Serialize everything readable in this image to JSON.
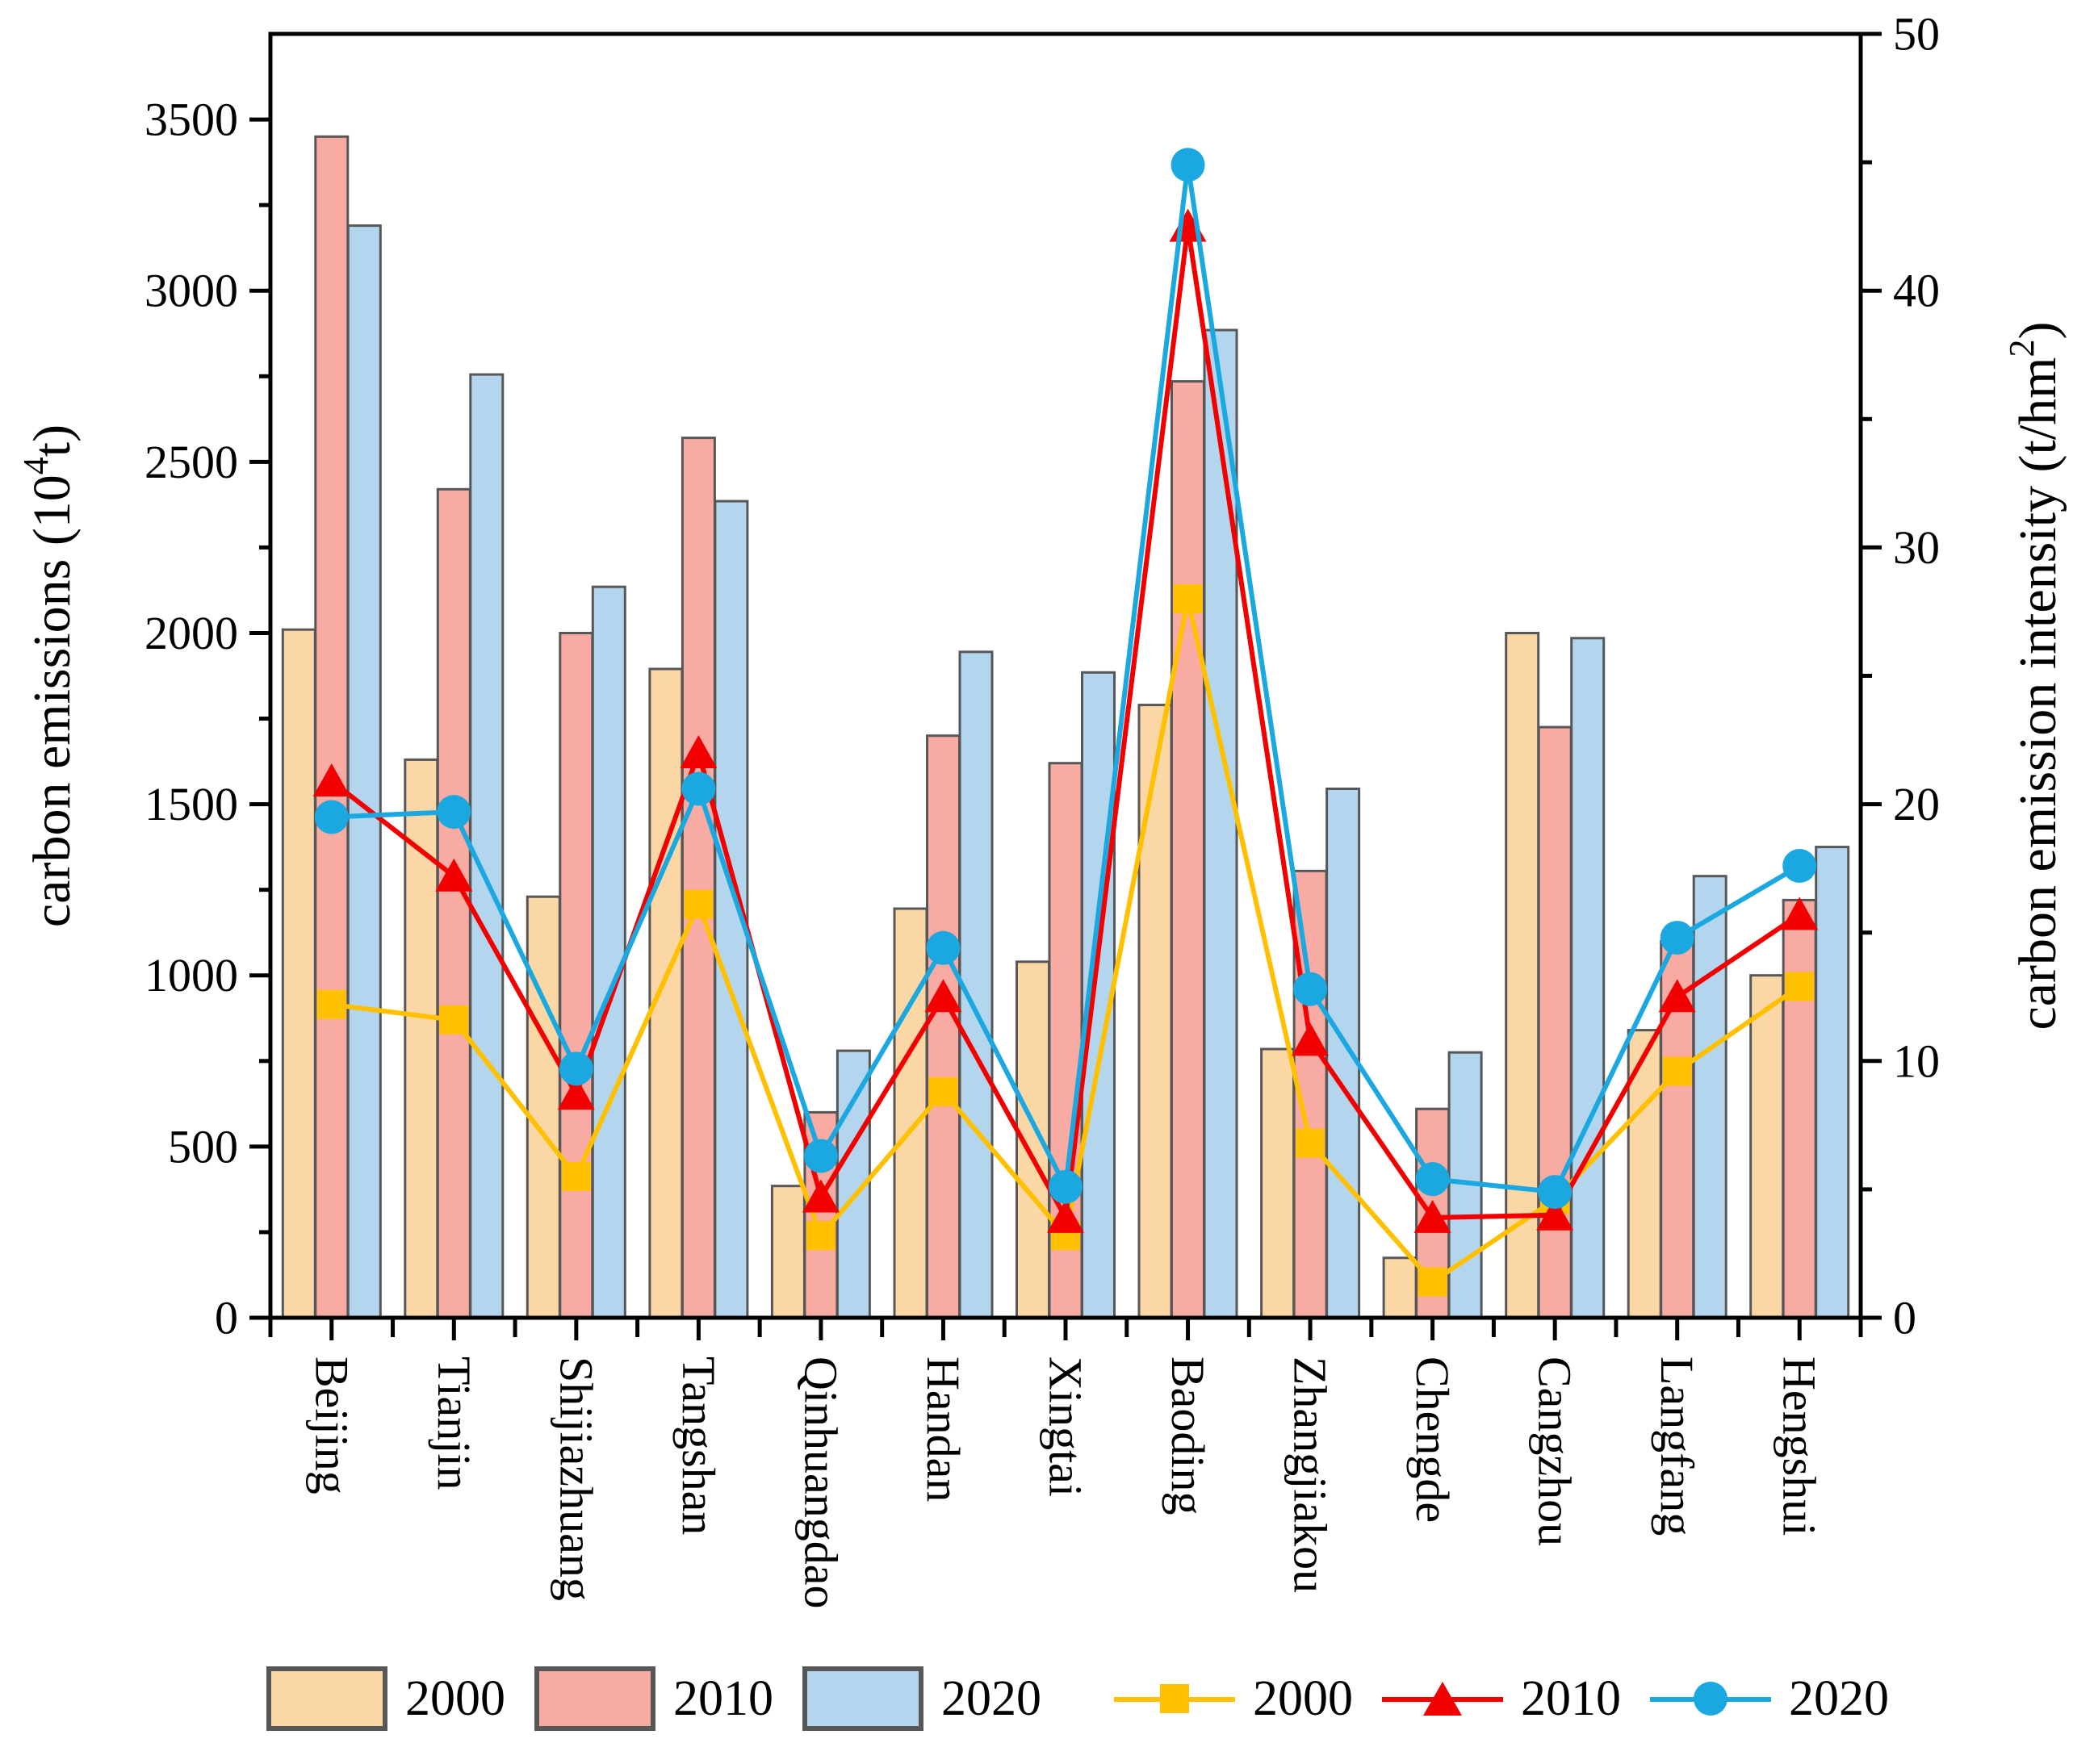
{
  "chart_data": {
    "type": "bar+line",
    "categories": [
      "Beijing",
      "Tianjin",
      "Shijiazhuang",
      "Tangshan",
      "Qinhuangdao",
      "Handan",
      "Xingtai",
      "Baoding",
      "Zhangjiakou",
      "Chengde",
      "Cangzhou",
      "Langfang",
      "Hengshui"
    ],
    "left_axis": {
      "title_prefix": "carbon emissions (10",
      "title_sup": "4",
      "title_suffix": "t)",
      "min": 0,
      "max": 3750,
      "major_ticks": [
        0,
        500,
        1000,
        1500,
        2000,
        2500,
        3000,
        3500
      ],
      "minor_ticks": [
        250,
        750,
        1250,
        1750,
        2250,
        2750,
        3250
      ],
      "grid": false
    },
    "right_axis": {
      "title_prefix": "carbon emission intensity (t/hm",
      "title_sup": "2",
      "title_suffix": ")",
      "min": 0,
      "max": 50,
      "major_ticks": [
        0,
        10,
        20,
        30,
        40,
        50
      ],
      "minor_ticks": [
        5,
        15,
        25,
        35,
        45
      ],
      "grid": false
    },
    "bar_series": [
      {
        "label": "2000",
        "fill": "#FCD7A6",
        "edge": "#575757",
        "values": [
          2010,
          1630,
          1230,
          1895,
          385,
          1195,
          1040,
          1790,
          785,
          175,
          2000,
          840,
          1000
        ]
      },
      {
        "label": "2010",
        "fill": "#F8ABA3",
        "edge": "#575757",
        "values": [
          3450,
          2420,
          2000,
          2570,
          600,
          1700,
          1620,
          2735,
          1305,
          610,
          1725,
          1100,
          1220
        ]
      },
      {
        "label": "2020",
        "fill": "#B3D6EE",
        "edge": "#575757",
        "values": [
          3190,
          2755,
          2135,
          2385,
          780,
          1945,
          1885,
          2885,
          1545,
          775,
          1985,
          1290,
          1375
        ]
      }
    ],
    "line_series": [
      {
        "label": "2000",
        "color": "#FFC000",
        "marker": "square",
        "values": [
          12.2,
          11.6,
          5.5,
          16.1,
          3.2,
          8.8,
          3.2,
          28.0,
          6.8,
          1.4,
          4.6,
          9.6,
          12.9
        ]
      },
      {
        "label": "2010",
        "color": "#F20000",
        "marker": "triangle",
        "values": [
          20.9,
          17.2,
          8.7,
          22.0,
          4.7,
          12.5,
          3.9,
          42.5,
          10.8,
          3.9,
          4.0,
          12.5,
          15.7
        ]
      },
      {
        "label": "2020",
        "color": "#1BA8E0",
        "marker": "circle",
        "values": [
          19.5,
          19.7,
          9.7,
          20.6,
          6.3,
          14.4,
          5.1,
          44.9,
          12.8,
          5.4,
          4.9,
          14.8,
          17.6
        ]
      }
    ],
    "legend_position": "bottom"
  },
  "legend": {
    "bar_items": [
      {
        "label": "2000"
      },
      {
        "label": "2010"
      },
      {
        "label": "2020"
      }
    ],
    "line_items": [
      {
        "label": "2000"
      },
      {
        "label": "2010"
      },
      {
        "label": "2020"
      }
    ]
  }
}
